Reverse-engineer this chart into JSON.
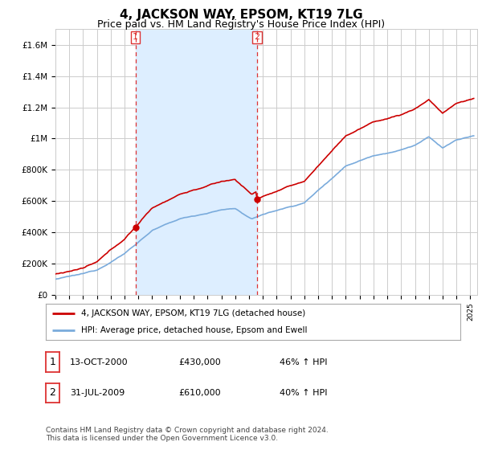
{
  "title": "4, JACKSON WAY, EPSOM, KT19 7LG",
  "subtitle": "Price paid vs. HM Land Registry's House Price Index (HPI)",
  "legend_label_red": "4, JACKSON WAY, EPSOM, KT19 7LG (detached house)",
  "legend_label_blue": "HPI: Average price, detached house, Epsom and Ewell",
  "footnote": "Contains HM Land Registry data © Crown copyright and database right 2024.\nThis data is licensed under the Open Government Licence v3.0.",
  "table_rows": [
    {
      "num": "1",
      "date": "13-OCT-2000",
      "price": "£430,000",
      "hpi": "46% ↑ HPI"
    },
    {
      "num": "2",
      "date": "31-JUL-2009",
      "price": "£610,000",
      "hpi": "40% ↑ HPI"
    }
  ],
  "sale1_year": 2000.79,
  "sale1_price": 430000,
  "sale2_year": 2009.58,
  "sale2_price": 610000,
  "ylim": [
    0,
    1700000
  ],
  "xlim_start": 1995.0,
  "xlim_end": 2025.5,
  "red_color": "#cc0000",
  "blue_color": "#7aabdc",
  "shade_color": "#ddeeff",
  "vline_color": "#dd3333",
  "background_color": "#ffffff",
  "grid_color": "#cccccc",
  "title_fontsize": 11,
  "subtitle_fontsize": 9
}
